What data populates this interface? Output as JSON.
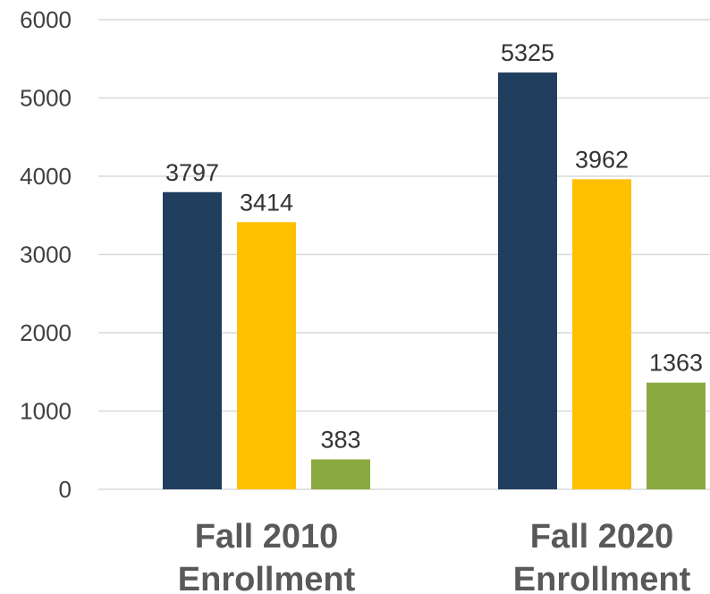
{
  "chart_data": {
    "type": "bar",
    "categories": [
      [
        "Fall 2010",
        "Enrollment"
      ],
      [
        "Fall 2020",
        "Enrollment"
      ]
    ],
    "series": [
      {
        "values": [
          3797,
          5325
        ],
        "color": "#203f5e"
      },
      {
        "values": [
          3414,
          3962
        ],
        "color": "#ffc000"
      },
      {
        "values": [
          383,
          1363
        ],
        "color": "#8aaa41"
      }
    ],
    "ylim": [
      0,
      6000
    ],
    "yticks": [
      "0",
      "1000",
      "2000",
      "3000",
      "4000",
      "5000",
      "6000"
    ],
    "grid": true,
    "legend": "none",
    "data_labels": true
  }
}
